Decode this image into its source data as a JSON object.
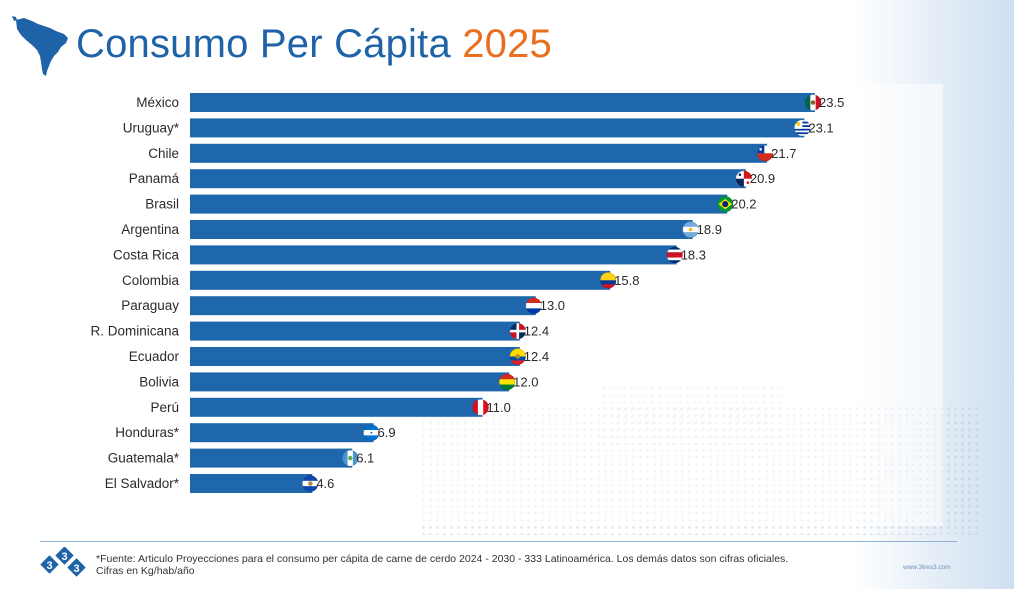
{
  "title": {
    "main": "Consumo Per Cápita",
    "year": "2025"
  },
  "chart_data": {
    "type": "bar",
    "orientation": "horizontal",
    "categories": [
      "México",
      "Uruguay*",
      "Chile",
      "Panamá",
      "Brasil",
      "Argentina",
      "Costa Rica",
      "Colombia",
      "Paraguay",
      "R. Dominicana",
      "Ecuador",
      "Bolivia",
      "Perú",
      "Honduras*",
      "Guatemala*",
      "El Salvador*"
    ],
    "values": [
      23.5,
      23.1,
      21.7,
      20.9,
      20.2,
      18.9,
      18.3,
      15.8,
      13.0,
      12.4,
      12.4,
      12.0,
      11.0,
      6.9,
      6.1,
      4.6
    ],
    "value_labels": [
      "23.5",
      "23.1",
      "21.7",
      "20.9",
      "20.2",
      "18.9",
      "18.3",
      "15.8",
      "13.0",
      "12.4",
      "12.4",
      "12.0",
      "11.0",
      "6.9",
      "6.1",
      "4.6"
    ],
    "flags": [
      "mexico-flag-icon",
      "uruguay-flag-icon",
      "chile-flag-icon",
      "panama-flag-icon",
      "brazil-flag-icon",
      "argentina-flag-icon",
      "costa-rica-flag-icon",
      "colombia-flag-icon",
      "paraguay-flag-icon",
      "dominican-republic-flag-icon",
      "ecuador-flag-icon",
      "bolivia-flag-icon",
      "peru-flag-icon",
      "honduras-flag-icon",
      "guatemala-flag-icon",
      "el-salvador-flag-icon"
    ],
    "xlim": [
      0,
      23.5
    ],
    "grid": false,
    "legend": "none",
    "bar_color": "#1f67ad"
  },
  "footer": {
    "source": "*Fuente: Articulo Proyecciones para el consumo per cápita de carne de cerdo 2024 - 2030 - 333 Latinoamérica. Los demás datos son cifras oficiales.",
    "units": "Cifras en Kg/hab/año",
    "website": "www.3tres3.com",
    "logo_digits": [
      "3",
      "3",
      "3"
    ]
  },
  "colors": {
    "title_blue": "#1e63a8",
    "year_orange": "#e86f1e",
    "bar_blue": "#1f67ad"
  }
}
